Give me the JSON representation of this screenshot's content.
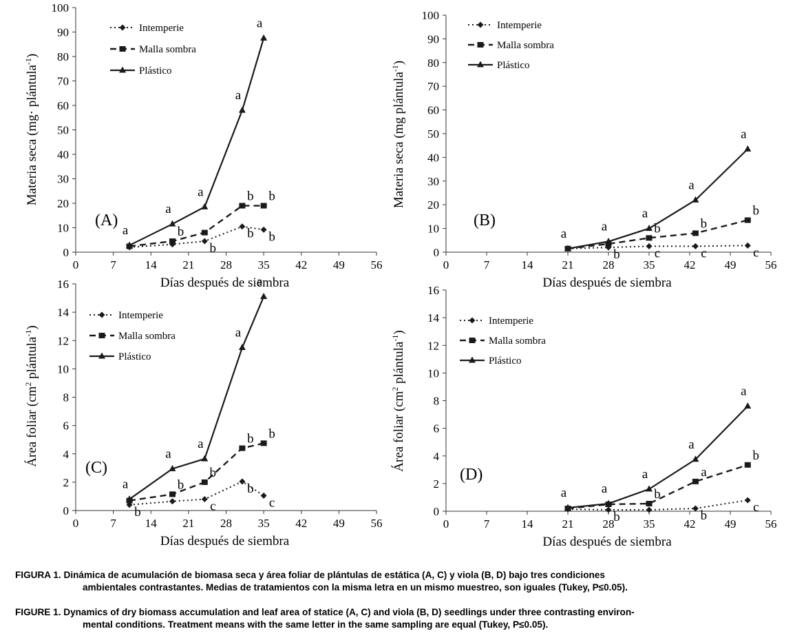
{
  "legend": {
    "s1": "Intemperie",
    "s2": "Malla sombra",
    "s3": "Plástico"
  },
  "colors": {
    "line": "#1a1a1a"
  },
  "xlabel": "Días después de siembra",
  "chart_data": [
    {
      "type": "line",
      "panel": "(A)",
      "ylabel": "Materia seca (mg· plántula-1)",
      "ylabel_main": "Materia seca (mg· plántula",
      "ylabel_sup": "-1",
      "ylabel_end": ")",
      "xlim": [
        0,
        56
      ],
      "ylim": [
        0,
        100
      ],
      "xticks": [
        0,
        7,
        14,
        21,
        28,
        35,
        42,
        49,
        56
      ],
      "yticks": [
        0,
        10,
        20,
        30,
        40,
        50,
        60,
        70,
        80,
        90,
        100
      ],
      "series": [
        {
          "name": "Intemperie",
          "x": [
            10,
            18,
            24,
            31,
            35
          ],
          "values": [
            2,
            3.2,
            4.5,
            10.5,
            9.2
          ],
          "letters": [
            "",
            "",
            "b",
            "b",
            "b"
          ]
        },
        {
          "name": "Malla sombra",
          "x": [
            10,
            18,
            24,
            31,
            35
          ],
          "values": [
            2.4,
            4.5,
            8,
            19,
            19
          ],
          "letters": [
            "",
            "b",
            "",
            "b",
            "b"
          ]
        },
        {
          "name": "Plástico",
          "x": [
            10,
            18,
            24,
            31,
            35
          ],
          "values": [
            2.8,
            11.5,
            18.5,
            58,
            87.5
          ],
          "letters": [
            "a",
            "a",
            "a",
            "a",
            "a"
          ]
        }
      ]
    },
    {
      "type": "line",
      "panel": "(B)",
      "ylabel": "Materia seca (mg plántula-1)",
      "ylabel_main": "Materia seca (mg plántula",
      "ylabel_sup": "-1",
      "ylabel_end": ")",
      "xlim": [
        0,
        56
      ],
      "ylim": [
        0,
        100
      ],
      "xticks": [
        0,
        7,
        14,
        21,
        28,
        35,
        42,
        49,
        56
      ],
      "yticks": [
        0,
        10,
        20,
        30,
        40,
        50,
        60,
        70,
        80,
        90,
        100
      ],
      "series": [
        {
          "name": "Intemperie",
          "x": [
            21,
            28,
            35,
            43,
            52
          ],
          "values": [
            1.5,
            2,
            2.5,
            2.5,
            2.8
          ],
          "letters": [
            "",
            "b",
            "c",
            "c",
            "c"
          ]
        },
        {
          "name": "Malla sombra",
          "x": [
            21,
            28,
            35,
            43,
            52
          ],
          "values": [
            1.5,
            3.5,
            6,
            8,
            13.5
          ],
          "letters": [
            "",
            "",
            "b",
            "b",
            "b"
          ]
        },
        {
          "name": "Plástico",
          "x": [
            21,
            28,
            35,
            43,
            52
          ],
          "values": [
            1.5,
            4.5,
            10,
            22,
            43.5
          ],
          "letters": [
            "a",
            "a",
            "a",
            "a",
            "a"
          ]
        }
      ]
    },
    {
      "type": "line",
      "panel": "(C)",
      "ylabel": "Área foliar (cm2 plántula-1)",
      "ylabel_main": "Área foliar (cm",
      "ylabel_sup2": "2",
      "ylabel_mid": " plántula",
      "ylabel_sup": "-1",
      "ylabel_end": ")",
      "xlim": [
        0,
        56
      ],
      "ylim": [
        0,
        16
      ],
      "xticks": [
        0,
        7,
        14,
        21,
        28,
        35,
        42,
        49,
        56
      ],
      "yticks": [
        0,
        2,
        4,
        6,
        8,
        10,
        12,
        14,
        16
      ],
      "series": [
        {
          "name": "Intemperie",
          "x": [
            10,
            18,
            24,
            31,
            35
          ],
          "values": [
            0.4,
            0.65,
            0.8,
            2.05,
            1.05
          ],
          "letters": [
            "b",
            "",
            "c",
            "b",
            "c"
          ]
        },
        {
          "name": "Malla sombra",
          "x": [
            10,
            18,
            24,
            31,
            35
          ],
          "values": [
            0.7,
            1.15,
            2,
            4.4,
            4.75
          ],
          "letters": [
            "",
            "b",
            "b",
            "b",
            "b"
          ]
        },
        {
          "name": "Plástico",
          "x": [
            10,
            18,
            24,
            31,
            35
          ],
          "values": [
            0.8,
            2.95,
            3.65,
            11.5,
            15.1
          ],
          "letters": [
            "a",
            "a",
            "a",
            "a",
            "a"
          ]
        }
      ]
    },
    {
      "type": "line",
      "panel": "(D)",
      "ylabel": "Área foliar (cm2 plántula-1)",
      "ylabel_main": "Área foliar (cm",
      "ylabel_sup2": "2",
      "ylabel_mid": " plántula",
      "ylabel_sup": "-1",
      "ylabel_end": ")",
      "xlim": [
        0,
        56
      ],
      "ylim": [
        0,
        16
      ],
      "xticks": [
        0,
        7,
        14,
        21,
        28,
        35,
        42,
        49,
        56
      ],
      "yticks": [
        0,
        2,
        4,
        6,
        8,
        10,
        12,
        14,
        16
      ],
      "series": [
        {
          "name": "Intemperie",
          "x": [
            21,
            28,
            35,
            43,
            52
          ],
          "values": [
            0.15,
            0.1,
            0.1,
            0.2,
            0.8
          ],
          "letters": [
            "",
            "b",
            "",
            "b",
            "c"
          ]
        },
        {
          "name": "Malla sombra",
          "x": [
            21,
            28,
            35,
            43,
            52
          ],
          "values": [
            0.2,
            0.5,
            0.55,
            2.15,
            3.35
          ],
          "letters": [
            "",
            "",
            "b",
            "a",
            "b"
          ]
        },
        {
          "name": "Plástico",
          "x": [
            21,
            28,
            35,
            43,
            52
          ],
          "values": [
            0.25,
            0.55,
            1.6,
            3.75,
            7.6
          ],
          "letters": [
            "a",
            "a",
            "a",
            "a",
            "a"
          ]
        }
      ]
    }
  ],
  "caption": {
    "es_label": "FIGURA 1.",
    "es_text": "Dinámica de acumulación de biomasa seca y área foliar de plántulas de estática (A, C) y viola (B, D) bajo tres condiciones",
    "es_text2": "ambientales contrastantes. Medias de tratamientos con la misma letra en un mismo muestreo, son iguales (Tukey, P≤0.05).",
    "en_label": "FIGURE 1.",
    "en_text": "Dynamics of dry biomass accumulation and leaf area of statice (A, C) and viola (B, D) seedlings under three contrasting environ-",
    "en_text2": "mental conditions. Treatment means with the same letter in the same sampling are equal (Tukey, P≤0.05)."
  }
}
